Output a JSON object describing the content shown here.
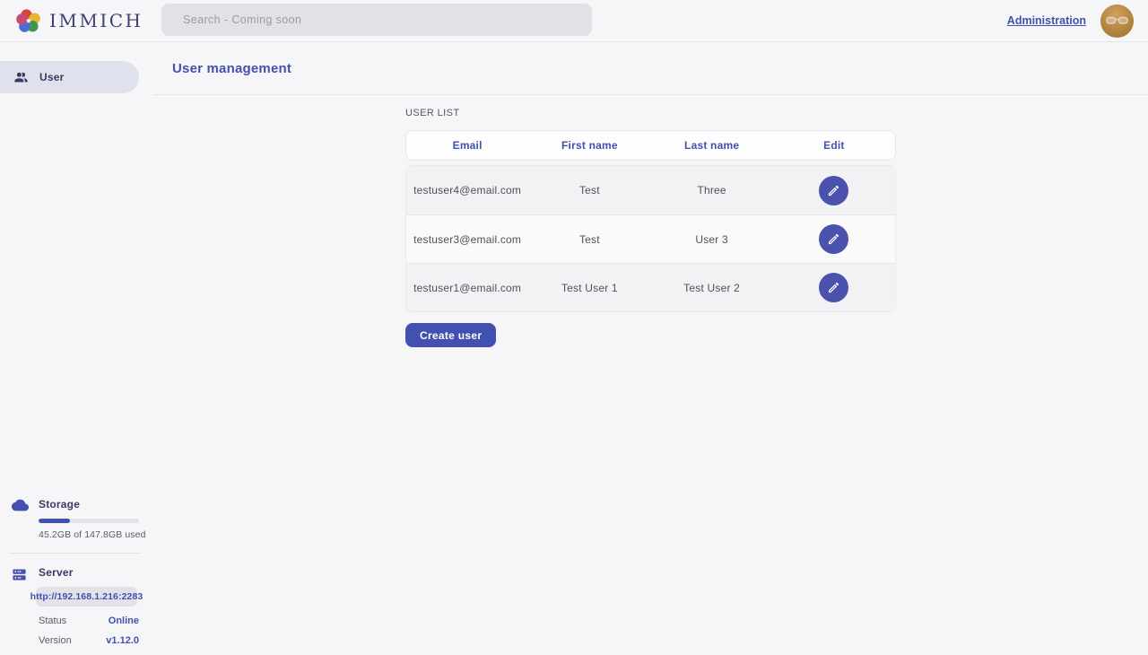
{
  "topbar": {
    "logo_text": "IMMICH",
    "search_placeholder": "Search - Coming soon",
    "admin_link": "Administration"
  },
  "sidebar": {
    "items": [
      {
        "label": "User"
      }
    ],
    "storage": {
      "title": "Storage",
      "usage_text": "45.2GB of 147.8GB used",
      "percent_used": 31
    },
    "server": {
      "title": "Server",
      "url": "http://192.168.1.216:2283",
      "status_label": "Status",
      "status_value": "Online",
      "version_label": "Version",
      "version_value": "v1.12.0"
    }
  },
  "page": {
    "title": "User management",
    "section_label": "USER LIST",
    "create_button": "Create user"
  },
  "table": {
    "headers": [
      "Email",
      "First name",
      "Last name",
      "Edit"
    ],
    "rows": [
      {
        "email": "testuser4@email.com",
        "first_name": "Test",
        "last_name": "Three"
      },
      {
        "email": "testuser3@email.com",
        "first_name": "Test",
        "last_name": "User 3"
      },
      {
        "email": "testuser1@email.com",
        "first_name": "Test User 1",
        "last_name": "Test User 2"
      }
    ]
  },
  "colors": {
    "accent": "#4250af",
    "status_online": "#4250af",
    "row_alt": "#f2f2f5",
    "page_bg": "#f6f6f9"
  }
}
